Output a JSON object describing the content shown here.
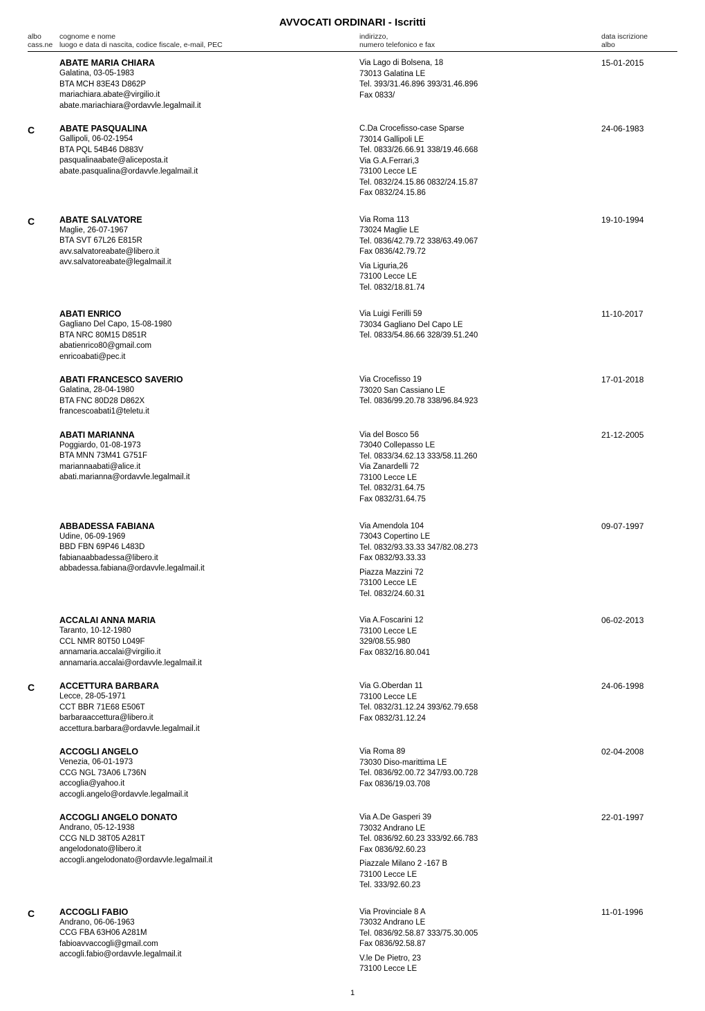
{
  "doc_title": "AVVOCATI ORDINARI - Iscritti",
  "headers": {
    "albo_l1": "albo",
    "albo_l2": "cass.ne",
    "name_l1": "cognome e nome",
    "name_l2": "luogo e data di nascita, codice fiscale, e-mail, PEC",
    "addr_l1": "indirizzo,",
    "addr_l2": "numero telefonico e fax",
    "date_l1": "data iscrizione",
    "date_l2": "albo"
  },
  "page_number": "1",
  "entries": [
    {
      "albo": "",
      "name": "ABATE MARIA CHIARA",
      "person_lines": [
        "Galatina, 03-05-1983",
        "BTA MCH 83E43 D862P",
        "mariachiara.abate@virgilio.it",
        "abate.mariachiara@ordavvle.legalmail.it"
      ],
      "addr_blocks": [
        [
          "Via Lago di Bolsena, 18",
          "73013  Galatina  LE",
          "Tel. 393/31.46.896 393/31.46.896",
          "Fax 0833/"
        ]
      ],
      "date": "15-01-2015"
    },
    {
      "albo": "C",
      "name": "ABATE PASQUALINA",
      "person_lines": [
        "Gallipoli, 06-02-1954",
        "BTA PQL 54B46 D883V",
        "pasqualinaabate@aliceposta.it",
        "abate.pasqualina@ordavvle.legalmail.it"
      ],
      "addr_blocks": [
        [
          "C.Da Crocefisso-case Sparse",
          "73014  Gallipoli  LE",
          "Tel. 0833/26.66.91 338/19.46.668",
          "Via G.A.Ferrari,3",
          "73100  Lecce  LE",
          "Tel. 0832/24.15.86 0832/24.15.87",
          "Fax 0832/24.15.86"
        ]
      ],
      "date": "24-06-1983"
    },
    {
      "albo": "C",
      "name": "ABATE SALVATORE",
      "person_lines": [
        "Maglie, 26-07-1967",
        "BTA SVT 67L26 E815R",
        "avv.salvatoreabate@libero.it",
        "avv.salvatoreabate@legalmail.it"
      ],
      "addr_blocks": [
        [
          "Via Roma 113",
          "73024  Maglie  LE",
          "Tel. 0836/42.79.72 338/63.49.067",
          "Fax 0836/42.79.72"
        ],
        [
          "Via Liguria,26",
          "73100  Lecce  LE",
          "Tel. 0832/18.81.74"
        ]
      ],
      "date": "19-10-1994"
    },
    {
      "albo": "",
      "name": "ABATI ENRICO",
      "person_lines": [
        "Gagliano Del Capo, 15-08-1980",
        "BTA NRC 80M15 D851R",
        "abatienrico80@gmail.com",
        "enricoabati@pec.it"
      ],
      "addr_blocks": [
        [
          "Via Luigi Ferilli 59",
          "73034  Gagliano Del Capo  LE",
          "Tel. 0833/54.86.66 328/39.51.240"
        ]
      ],
      "date": "11-10-2017"
    },
    {
      "albo": "",
      "name": "ABATI FRANCESCO SAVERIO",
      "person_lines": [
        "Galatina, 28-04-1980",
        "BTA FNC 80D28 D862X",
        "francescoabati1@teletu.it"
      ],
      "addr_blocks": [
        [
          "Via Crocefisso 19",
          "73020  San Cassiano  LE",
          "Tel. 0836/99.20.78 338/96.84.923"
        ]
      ],
      "date": "17-01-2018"
    },
    {
      "albo": "",
      "name": "ABATI MARIANNA",
      "person_lines": [
        "Poggiardo, 01-08-1973",
        "BTA MNN 73M41 G751F",
        "mariannaabati@alice.it",
        "abati.marianna@ordavvle.legalmail.it"
      ],
      "addr_blocks": [
        [
          "Via del Bosco 56",
          "73040  Collepasso  LE",
          "Tel. 0833/34.62.13 333/58.11.260",
          "Via Zanardelli 72",
          "73100  Lecce  LE",
          "Tel. 0832/31.64.75",
          "Fax 0832/31.64.75"
        ]
      ],
      "date": "21-12-2005"
    },
    {
      "albo": "",
      "name": "ABBADESSA FABIANA",
      "person_lines": [
        "Udine, 06-09-1969",
        "BBD FBN 69P46 L483D",
        "fabianaabbadessa@libero.it",
        "abbadessa.fabiana@ordavvle.legalmail.it"
      ],
      "addr_blocks": [
        [
          "Via Amendola 104",
          "73043  Copertino  LE",
          "Tel. 0832/93.33.33 347/82.08.273",
          "Fax 0832/93.33.33"
        ],
        [
          "Piazza Mazzini 72",
          "73100  Lecce  LE",
          "Tel. 0832/24.60.31"
        ]
      ],
      "date": "09-07-1997"
    },
    {
      "albo": "",
      "name": "ACCALAI ANNA MARIA",
      "person_lines": [
        "Taranto, 10-12-1980",
        "CCL NMR 80T50 L049F",
        "annamaria.accalai@virgilio.it",
        "annamaria.accalai@ordavvle.legalmail.it"
      ],
      "addr_blocks": [
        [
          "Via A.Foscarini 12",
          "73100  Lecce  LE",
          "329/08.55.980",
          "Fax 0832/16.80.041"
        ]
      ],
      "date": "06-02-2013"
    },
    {
      "albo": "C",
      "name": "ACCETTURA BARBARA",
      "person_lines": [
        "Lecce, 28-05-1971",
        "CCT BBR 71E68 E506T",
        "barbaraaccettura@libero.it",
        "accettura.barbara@ordavvle.legalmail.it"
      ],
      "addr_blocks": [
        [
          "Via G.Oberdan 11",
          "73100  Lecce  LE",
          "Tel. 0832/31.12.24 393/62.79.658",
          "Fax 0832/31.12.24"
        ]
      ],
      "date": "24-06-1998"
    },
    {
      "albo": "",
      "name": "ACCOGLI ANGELO",
      "person_lines": [
        "Venezia, 06-01-1973",
        "CCG NGL 73A06 L736N",
        "accoglia@yahoo.it",
        "accogli.angelo@ordavvle.legalmail.it"
      ],
      "addr_blocks": [
        [
          "Via Roma 89",
          "73030  Diso-marittima  LE",
          "Tel. 0836/92.00.72 347/93.00.728",
          "Fax 0836/19.03.708"
        ]
      ],
      "date": "02-04-2008"
    },
    {
      "albo": "",
      "name": "ACCOGLI ANGELO DONATO",
      "person_lines": [
        "Andrano, 05-12-1938",
        "CCG NLD 38T05 A281T",
        "angelodonato@libero.it",
        "accogli.angelodonato@ordavvle.legalmail.it"
      ],
      "addr_blocks": [
        [
          "Via A.De Gasperi 39",
          "73032  Andrano  LE",
          "Tel. 0836/92.60.23 333/92.66.783",
          "Fax 0836/92.60.23"
        ],
        [
          "Piazzale Milano 2 -167 B",
          "73100  Lecce  LE",
          "Tel. 333/92.60.23"
        ]
      ],
      "date": "22-01-1997"
    },
    {
      "albo": "C",
      "name": "ACCOGLI FABIO",
      "person_lines": [
        "Andrano, 06-06-1963",
        "CCG FBA 63H06 A281M",
        "fabioavvaccogli@gmail.com",
        "accogli.fabio@ordavvle.legalmail.it"
      ],
      "addr_blocks": [
        [
          "Via Provinciale 8 A",
          "73032  Andrano  LE",
          "Tel. 0836/92.58.87 333/75.30.005",
          "Fax 0836/92.58.87"
        ],
        [
          "V.le De Pietro, 23",
          "73100  Lecce  LE"
        ]
      ],
      "date": "11-01-1996"
    }
  ]
}
